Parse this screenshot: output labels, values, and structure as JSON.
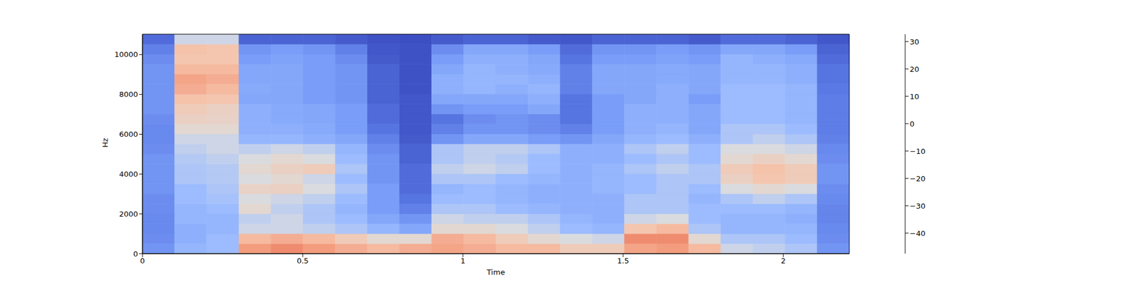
{
  "chart_data": {
    "type": "heatmap",
    "x_label": "Time",
    "y_label": "Hz",
    "xlim": [
      0,
      2.206
    ],
    "ylim": [
      0,
      11025
    ],
    "xticks": [
      0,
      0.5,
      1,
      1.5,
      2
    ],
    "yticks": [
      0,
      2000,
      4000,
      6000,
      8000,
      10000
    ],
    "cells": [
      [
        -30,
        -20,
        -18,
        12,
        15,
        12,
        8,
        5,
        8,
        10,
        8,
        5,
        5,
        0,
        0,
        10,
        12,
        5,
        -10,
        -12,
        -15,
        -30
      ],
      [
        -32,
        -22,
        -18,
        5,
        8,
        5,
        0,
        -5,
        -5,
        8,
        5,
        0,
        -5,
        -8,
        -10,
        15,
        15,
        -5,
        -15,
        -15,
        -18,
        -32
      ],
      [
        -33,
        -22,
        -20,
        -10,
        -10,
        -12,
        -15,
        -20,
        -25,
        -5,
        -5,
        -8,
        -12,
        -18,
        -20,
        2,
        5,
        -15,
        -20,
        -20,
        -20,
        -33
      ],
      [
        -33,
        -20,
        -20,
        -12,
        -10,
        -15,
        -18,
        -25,
        -30,
        -10,
        -12,
        -12,
        -15,
        -20,
        -22,
        -10,
        -8,
        -18,
        -20,
        -20,
        -22,
        -34
      ],
      [
        -32,
        -20,
        -18,
        -5,
        -12,
        -15,
        -20,
        -28,
        -35,
        -15,
        -15,
        -18,
        -20,
        -22,
        -22,
        -15,
        -15,
        -18,
        -18,
        -18,
        -20,
        -34
      ],
      [
        -32,
        -18,
        -16,
        -8,
        -10,
        -12,
        -18,
        -28,
        -38,
        -18,
        -18,
        -20,
        -22,
        -22,
        -22,
        -15,
        -15,
        -20,
        -15,
        -12,
        -15,
        -33
      ],
      [
        -30,
        -18,
        -15,
        -3,
        -2,
        -8,
        -15,
        -28,
        -40,
        -20,
        -18,
        -20,
        -22,
        -22,
        -20,
        -18,
        -15,
        -18,
        -8,
        -5,
        -8,
        -32
      ],
      [
        -30,
        -15,
        -14,
        -8,
        -5,
        -10,
        -18,
        -30,
        -40,
        -15,
        -15,
        -18,
        -20,
        -22,
        -20,
        -18,
        -15,
        -15,
        -2,
        2,
        0,
        -30
      ],
      [
        -30,
        -15,
        -14,
        -5,
        -2,
        0,
        -15,
        -30,
        -40,
        -12,
        -10,
        -12,
        -18,
        -22,
        -20,
        -15,
        -12,
        -15,
        0,
        3,
        0,
        -30
      ],
      [
        -30,
        -14,
        -12,
        -8,
        -5,
        -8,
        -18,
        -30,
        -42,
        -15,
        -12,
        -14,
        -18,
        -22,
        -22,
        -18,
        -15,
        -18,
        -5,
        -2,
        -5,
        -32
      ],
      [
        -32,
        -12,
        -10,
        -12,
        -10,
        -12,
        -20,
        -32,
        -42,
        -15,
        -12,
        -12,
        -15,
        -22,
        -22,
        -15,
        -12,
        -18,
        -8,
        -8,
        -10,
        -33
      ],
      [
        -33,
        -10,
        -10,
        -20,
        -20,
        -22,
        -25,
        -35,
        -44,
        -30,
        -25,
        -25,
        -28,
        -30,
        -25,
        -20,
        -18,
        -22,
        -15,
        -12,
        -15,
        -35
      ],
      [
        -33,
        -5,
        -5,
        -22,
        -22,
        -24,
        -28,
        -38,
        -45,
        -35,
        -30,
        -30,
        -32,
        -35,
        -28,
        -22,
        -20,
        -25,
        -15,
        -15,
        -18,
        -36
      ],
      [
        -32,
        -2,
        -3,
        -22,
        -24,
        -25,
        -28,
        -40,
        -45,
        -38,
        -32,
        -30,
        -32,
        -38,
        -28,
        -22,
        -22,
        -25,
        -18,
        -18,
        -20,
        -36
      ],
      [
        -30,
        0,
        -2,
        -22,
        -24,
        -25,
        -28,
        -40,
        -45,
        -30,
        -28,
        -28,
        -25,
        -38,
        -28,
        -22,
        -22,
        -25,
        -18,
        -18,
        -20,
        -36
      ],
      [
        -30,
        3,
        2,
        -25,
        -25,
        -28,
        -30,
        -42,
        -45,
        -25,
        -25,
        -25,
        -22,
        -38,
        -28,
        -25,
        -22,
        -28,
        -18,
        -18,
        -20,
        -36
      ],
      [
        -30,
        8,
        5,
        -24,
        -25,
        -28,
        -30,
        -42,
        -46,
        -22,
        -20,
        -22,
        -20,
        -35,
        -25,
        -25,
        -22,
        -25,
        -18,
        -18,
        -20,
        -37
      ],
      [
        -30,
        10,
        8,
        -25,
        -25,
        -28,
        -30,
        -42,
        -46,
        -22,
        -20,
        -20,
        -22,
        -35,
        -25,
        -25,
        -24,
        -25,
        -20,
        -20,
        -22,
        -38
      ],
      [
        -30,
        5,
        5,
        -25,
        -25,
        -28,
        -30,
        -42,
        -46,
        -25,
        -20,
        -22,
        -24,
        -35,
        -25,
        -25,
        -24,
        -25,
        -20,
        -20,
        -22,
        -38
      ],
      [
        -32,
        2,
        2,
        -28,
        -26,
        -28,
        -32,
        -44,
        -46,
        -28,
        -22,
        -22,
        -25,
        -38,
        -28,
        -28,
        -26,
        -28,
        -20,
        -22,
        -24,
        -40
      ],
      [
        -35,
        3,
        2,
        -30,
        -28,
        -30,
        -35,
        -45,
        -46,
        -32,
        -25,
        -25,
        -28,
        -40,
        -30,
        -30,
        -28,
        -30,
        -25,
        -25,
        -28,
        -42
      ],
      [
        -40,
        -10,
        -10,
        -42,
        -42,
        -42,
        -44,
        -46,
        -47,
        -44,
        -42,
        -42,
        -44,
        -45,
        -42,
        -42,
        -42,
        -44,
        -40,
        -40,
        -42,
        -45
      ]
    ],
    "colorbar_lim": [
      -47.5,
      32.7
    ],
    "colorbar_ticks": [
      {
        "value": -40,
        "label": "−40"
      },
      {
        "value": -30,
        "label": "−30"
      },
      {
        "value": -20,
        "label": "−20"
      },
      {
        "value": -10,
        "label": "−10"
      },
      0,
      10,
      20,
      30
    ]
  }
}
